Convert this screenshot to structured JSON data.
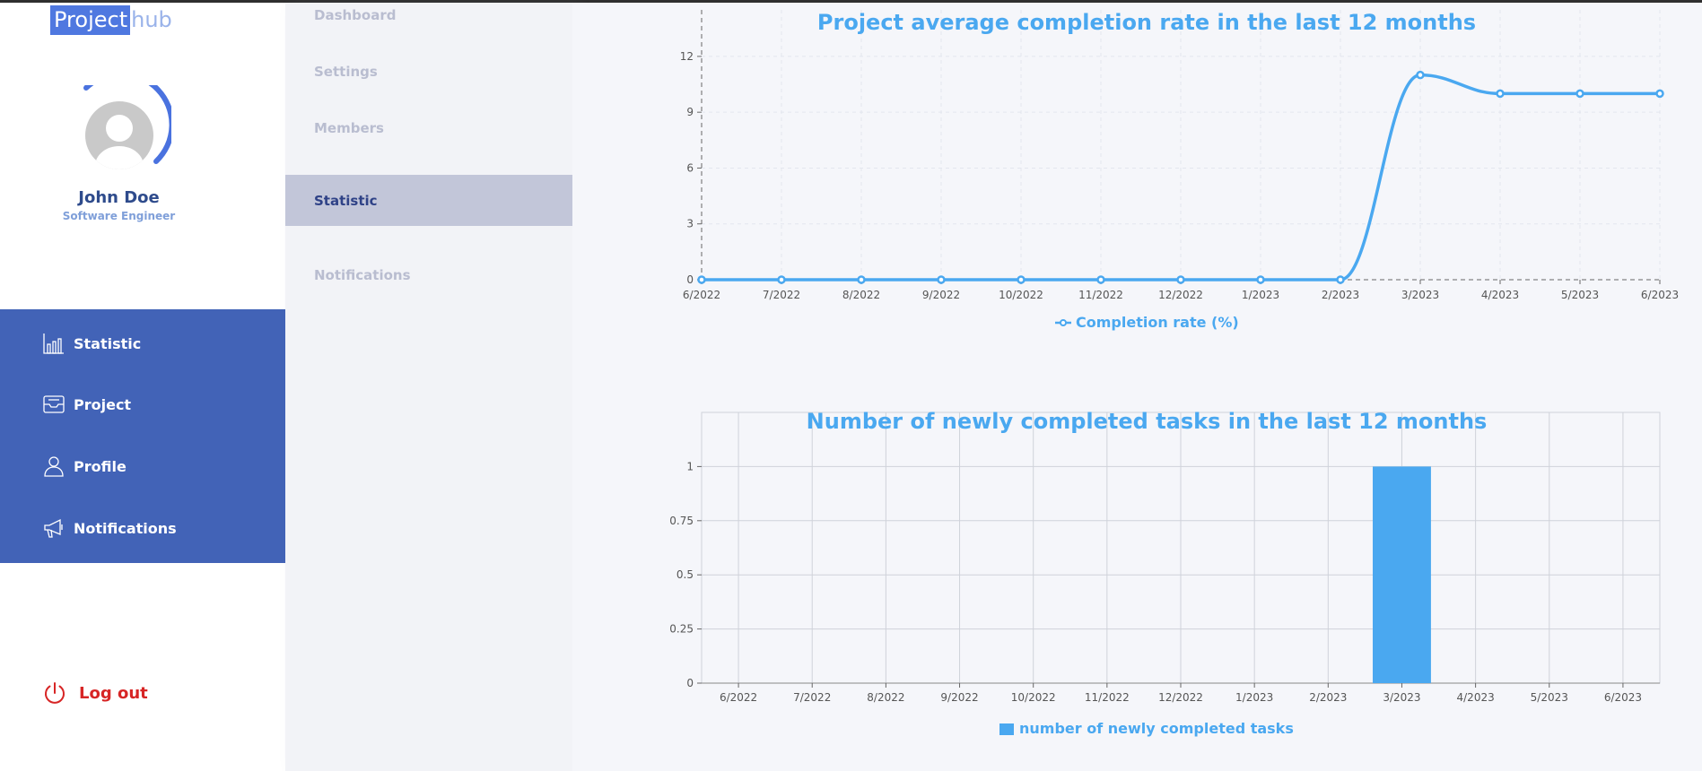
{
  "app": {
    "logo_primary": "Project",
    "logo_secondary": "hub"
  },
  "user": {
    "name": "John Doe",
    "role": "Software Engineer"
  },
  "sidebar": {
    "items": [
      {
        "label": "Statistic",
        "icon": "bar-chart-icon"
      },
      {
        "label": "Project",
        "icon": "inbox-icon"
      },
      {
        "label": "Profile",
        "icon": "user-icon"
      },
      {
        "label": "Notifications",
        "icon": "megaphone-icon"
      }
    ],
    "logout_label": "Log out"
  },
  "subnav": {
    "items": [
      {
        "label": "Dashboard",
        "active": false
      },
      {
        "label": "Settings",
        "active": false
      },
      {
        "label": "Members",
        "active": false
      },
      {
        "label": "Statistic",
        "active": true
      },
      {
        "label": "Notifications",
        "active": false
      }
    ]
  },
  "colors": {
    "accent": "#4aa8f0",
    "menu_bg": "#4263b7",
    "logout": "#d72525"
  },
  "chart_data": [
    {
      "type": "line",
      "title": "Project average completion rate in the last 12 months",
      "categories": [
        "6/2022",
        "7/2022",
        "8/2022",
        "9/2022",
        "10/2022",
        "11/2022",
        "12/2022",
        "1/2023",
        "2/2023",
        "3/2023",
        "4/2023",
        "5/2023",
        "6/2023"
      ],
      "series": [
        {
          "name": "Completion rate (%)",
          "values": [
            0,
            0,
            0,
            0,
            0,
            0,
            0,
            0,
            0,
            11,
            10,
            10,
            10
          ]
        }
      ],
      "yticks": [
        "0",
        "3",
        "6",
        "9",
        "12"
      ],
      "ylim": [
        0,
        14.5
      ],
      "grid": true,
      "legend": "bottom"
    },
    {
      "type": "bar",
      "title": "Number of newly completed tasks in the last 12 months",
      "categories": [
        "6/2022",
        "7/2022",
        "8/2022",
        "9/2022",
        "10/2022",
        "11/2022",
        "12/2022",
        "1/2023",
        "2/2023",
        "3/2023",
        "4/2023",
        "5/2023",
        "6/2023"
      ],
      "series": [
        {
          "name": "number of newly completed tasks",
          "values": [
            0,
            0,
            0,
            0,
            0,
            0,
            0,
            0,
            0,
            1,
            0,
            0,
            0
          ]
        }
      ],
      "yticks": [
        "0",
        "0.25",
        "0.5",
        "0.75",
        "1"
      ],
      "ylim": [
        0,
        1.25
      ],
      "grid": true,
      "legend": "bottom"
    }
  ]
}
